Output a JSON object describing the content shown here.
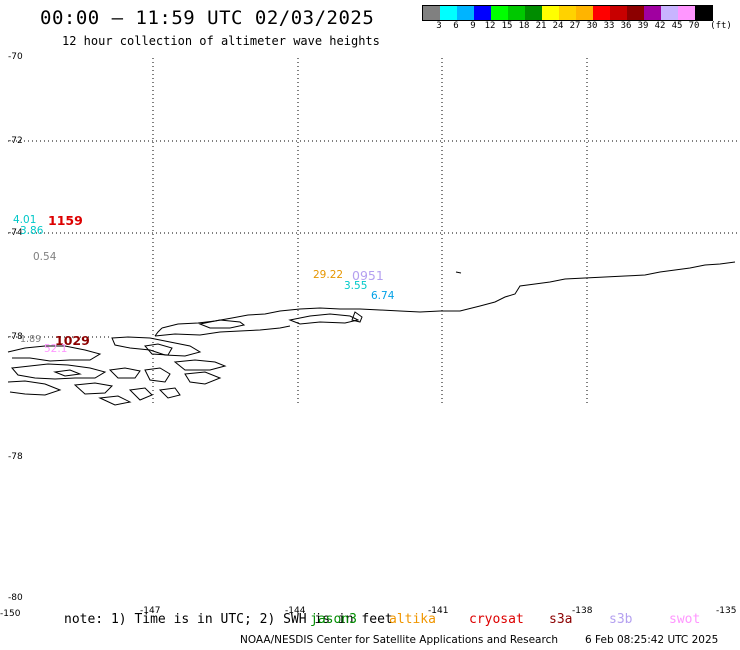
{
  "title": "00:00 – 11:59 UTC 02/03/2025",
  "subtitle": "12 hour collection of altimeter wave heights",
  "legend": {
    "unit": "(ft)",
    "colors": [
      "#808080",
      "#00ffff",
      "#00b4ff",
      "#0000ff",
      "#00ff00",
      "#00c800",
      "#008c00",
      "#ffff00",
      "#ffd200",
      "#ffb400",
      "#ff0000",
      "#c80000",
      "#8c0000",
      "#a000a0",
      "#c8b4ff",
      "#ff96ff",
      "#000000"
    ],
    "labels": [
      "3",
      "6",
      "9",
      "12",
      "15",
      "18",
      "21",
      "24",
      "27",
      "30",
      "33",
      "36",
      "39",
      "42",
      "45",
      "70"
    ]
  },
  "lat_labels": [
    "-70",
    "-72",
    "-74",
    "-78",
    "-78",
    "-80"
  ],
  "lon_labels": [
    "-150",
    "-147",
    "-144",
    "-141",
    "-138",
    "-135"
  ],
  "observations": [
    {
      "text": "4.01",
      "color": "#00c8c8"
    },
    {
      "text": "1159",
      "color": "#dd0000"
    },
    {
      "text": "3.86",
      "color": "#00c8c8"
    },
    {
      "text": "0.54",
      "color": "#808080"
    },
    {
      "text": "29.22",
      "color": "#e69600"
    },
    {
      "text": "0951",
      "color": "#b4a0f0"
    },
    {
      "text": "3.55",
      "color": "#00c8c8"
    },
    {
      "text": "6.74",
      "color": "#00a0e6"
    },
    {
      "text": "1.89",
      "color": "#808080"
    },
    {
      "text": "1029",
      "color": "#8c0000"
    },
    {
      "text": "52.1",
      "color": "#ff96ff"
    }
  ],
  "note": "note: 1) Time is in UTC; 2) SWH is in feet",
  "satellites": [
    {
      "name": "jason3",
      "color": "#008c00"
    },
    {
      "name": "altika",
      "color": "#f09600"
    },
    {
      "name": "cryosat",
      "color": "#dd0000"
    },
    {
      "name": "s3a",
      "color": "#8c0000"
    },
    {
      "name": "s3b",
      "color": "#b4a0f0"
    },
    {
      "name": "swot",
      "color": "#ff96ff"
    }
  ],
  "credit": "NOAA/NESDIS Center for Satellite Applications and Research",
  "timestamp": "6 Feb 08:25:42 UTC 2025"
}
